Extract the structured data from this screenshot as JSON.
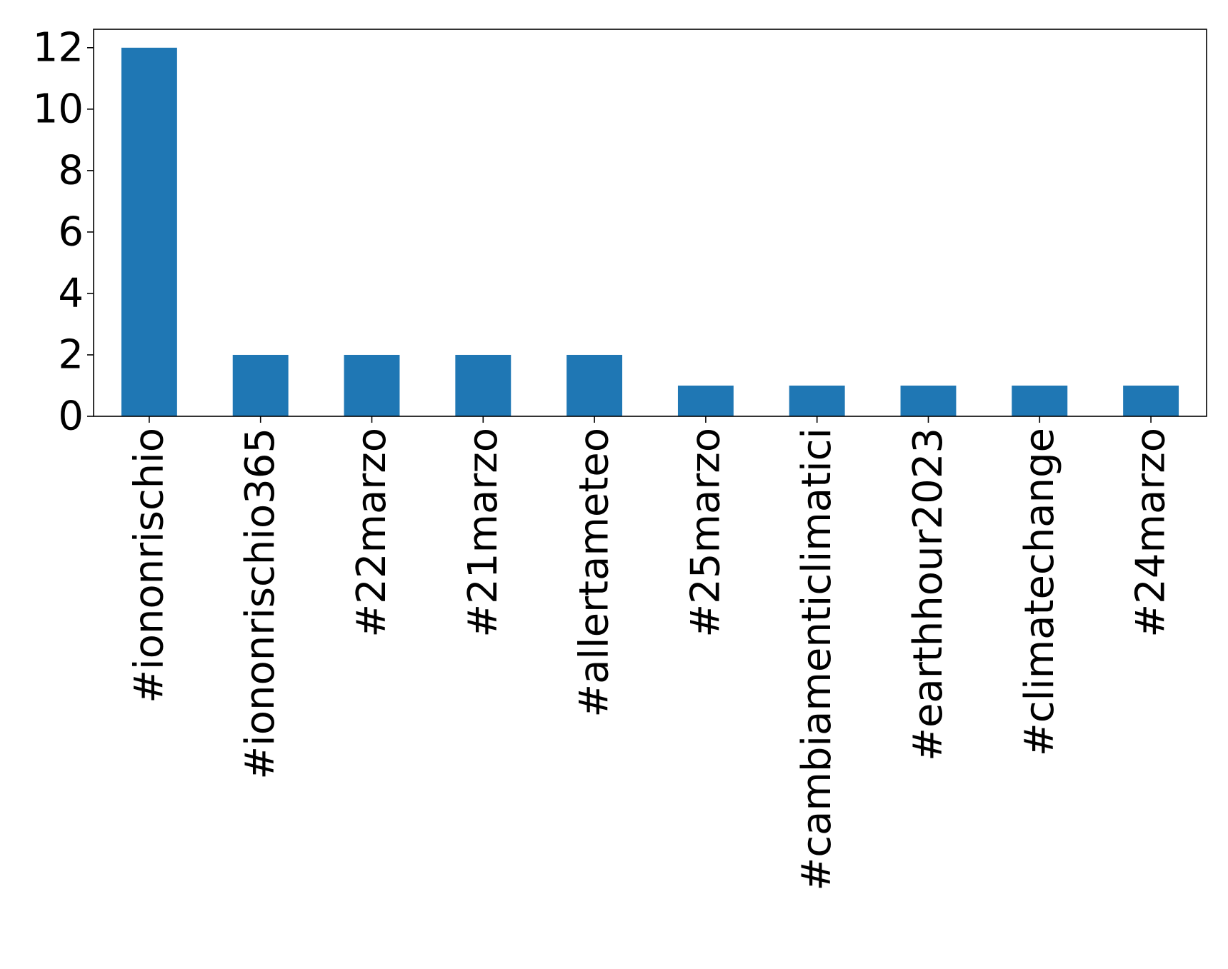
{
  "chart_data": {
    "type": "bar",
    "title": "",
    "xlabel": "",
    "ylabel": "",
    "categories": [
      "#iononrischio",
      "#iononrischio365",
      "#22marzo",
      "#21marzo",
      "#allertameteo",
      "#25marzo",
      "#cambiamenticlimatici",
      "#earthhour2023",
      "#climatechange",
      "#24marzo"
    ],
    "values": [
      12,
      2,
      2,
      2,
      2,
      1,
      1,
      1,
      1,
      1
    ],
    "ylim": [
      0,
      12.6
    ],
    "yticks": [
      0,
      2,
      4,
      6,
      8,
      10,
      12
    ],
    "grid": false,
    "legend": "none",
    "bar_color": "#1f77b4"
  }
}
